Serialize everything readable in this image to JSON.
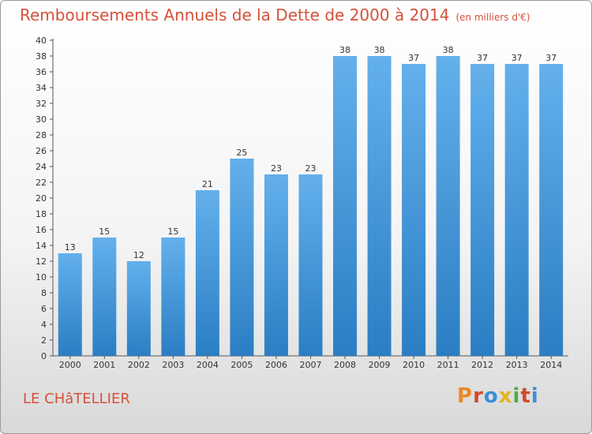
{
  "header": {
    "title": "Remboursements Annuels de la Dette de 2000 à 2014",
    "unit": "(en milliers d'€)"
  },
  "footer": {
    "place": "LE CHâTELLIER",
    "logo": "Proxiti"
  },
  "colors": {
    "title": "#d5513a",
    "bar_top": "#63b0ec",
    "bar_bottom": "#2b7ec3",
    "axis": "#555555",
    "logo": [
      "#e8892a",
      "#d24a2a",
      "#3a8fd8",
      "#e2b520",
      "#55a847",
      "#d24a2a",
      "#3a8fd8"
    ]
  },
  "chart_data": {
    "type": "bar",
    "title": "Remboursements Annuels de la Dette de 2000 à 2014",
    "ylabel": "(en milliers d'€)",
    "xlabel": "",
    "categories": [
      "2000",
      "2001",
      "2002",
      "2003",
      "2004",
      "2005",
      "2006",
      "2007",
      "2008",
      "2009",
      "2010",
      "2011",
      "2012",
      "2013",
      "2014"
    ],
    "values": [
      13,
      15,
      12,
      15,
      21,
      25,
      23,
      23,
      38,
      38,
      37,
      38,
      37,
      37,
      37
    ],
    "ylim": [
      0,
      40
    ],
    "ytick_step": 2,
    "grid": false,
    "legend": "none"
  }
}
